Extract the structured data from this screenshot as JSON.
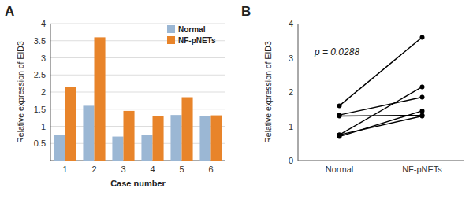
{
  "chart_data": [
    {
      "type": "bar",
      "title": "A",
      "categories": [
        "1",
        "2",
        "3",
        "4",
        "5",
        "6"
      ],
      "series": [
        {
          "name": "Normal",
          "color": "#9BB7D4",
          "values": [
            0.75,
            1.6,
            0.7,
            0.75,
            1.33,
            1.3
          ]
        },
        {
          "name": "NF-pNETs",
          "color": "#E8842A",
          "values": [
            2.15,
            3.6,
            1.45,
            1.3,
            1.85,
            1.32
          ]
        }
      ],
      "ylabel": "Relative expression of EID3",
      "xlabel": "Case number",
      "ylim": [
        0,
        4
      ],
      "yticks": [
        0.5,
        1,
        1.5,
        2,
        2.5,
        3,
        3.5,
        4
      ],
      "grid": true,
      "legend": "upper right"
    },
    {
      "type": "line",
      "title": "B",
      "categories": [
        "Normal",
        "NF-pNETs"
      ],
      "series": [
        {
          "values": [
            0.75,
            2.15
          ]
        },
        {
          "values": [
            1.6,
            3.6
          ]
        },
        {
          "values": [
            0.7,
            1.45
          ]
        },
        {
          "values": [
            0.75,
            1.3
          ]
        },
        {
          "values": [
            1.33,
            1.85
          ]
        },
        {
          "values": [
            1.3,
            1.32
          ]
        }
      ],
      "color": "#000000",
      "marker": "circle",
      "ylabel": "Relative expression of EID3",
      "ylim": [
        0,
        4
      ],
      "yticks": [
        0,
        1,
        2,
        3,
        4
      ],
      "annotation": "p = 0.0288"
    }
  ]
}
